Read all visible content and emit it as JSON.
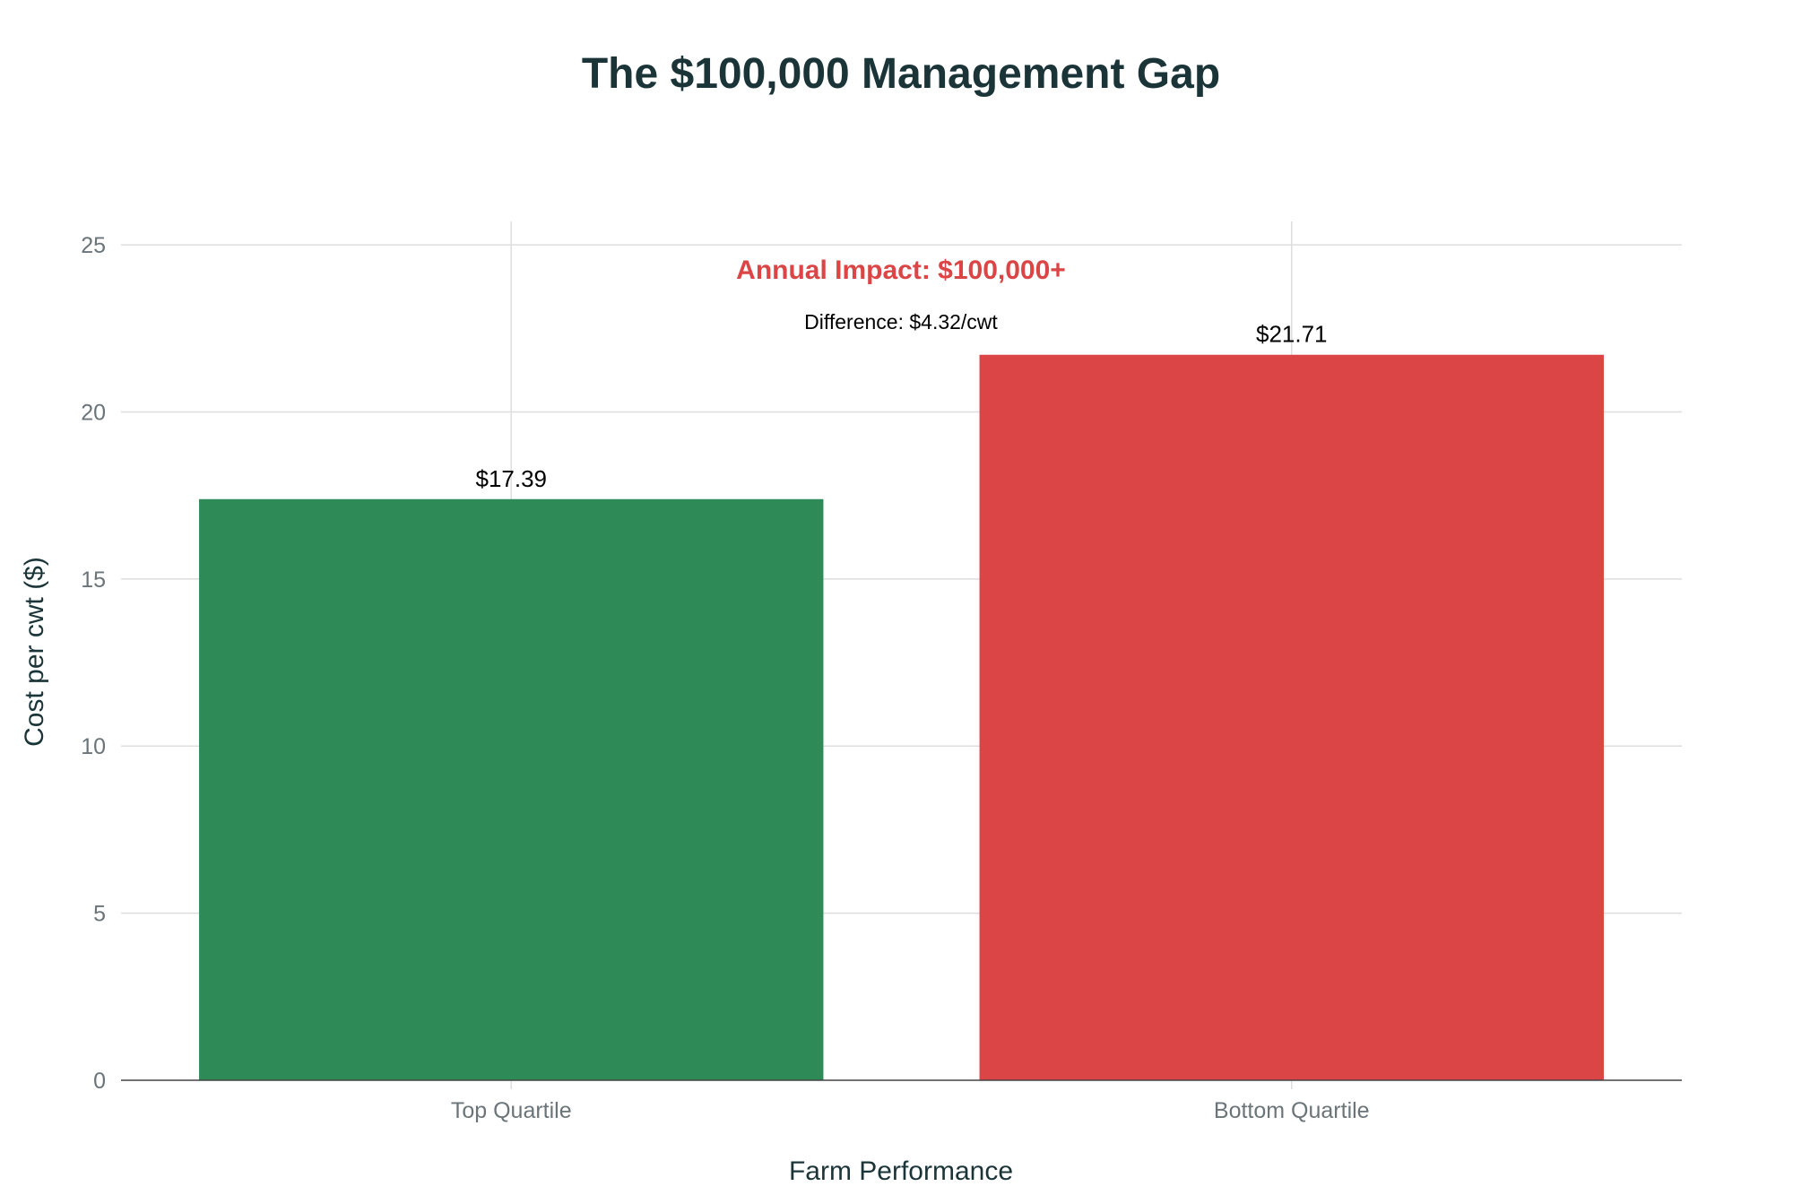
{
  "chart_data": {
    "type": "bar",
    "title": "The $100,000 Management Gap",
    "xlabel": "Farm Performance",
    "ylabel": "Cost per cwt ($)",
    "categories": [
      "Top Quartile",
      "Bottom Quartile"
    ],
    "values": [
      17.39,
      21.71
    ],
    "data_labels": [
      "$17.39",
      "$21.71"
    ],
    "colors": [
      "#2e8b57",
      "#db4545"
    ],
    "ylim": [
      0,
      25.7
    ],
    "yticks": [
      0,
      5,
      10,
      15,
      20,
      25
    ],
    "grid": true,
    "annotations": [
      {
        "text": "Annual Impact: $100,000+",
        "color": "#db4545"
      },
      {
        "text": "Difference: $4.32/cwt",
        "color": "#000000"
      }
    ]
  }
}
